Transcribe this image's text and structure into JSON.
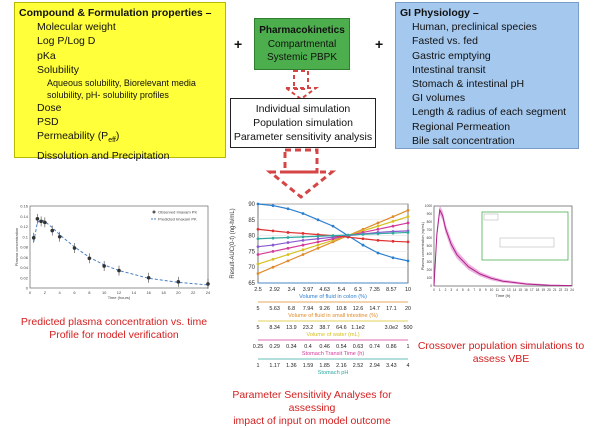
{
  "compound": {
    "title": "Compound & Formulation properties –",
    "items": [
      "Molecular weight",
      "Log P/Log D",
      "pKa",
      "Solubility"
    ],
    "sub_items": [
      "Aqueous solubility, Biorelevant media",
      "solubility, pH- solubility profiles"
    ],
    "items2": [
      "Dose",
      "PSD"
    ],
    "permeability": "Permeability (P",
    "permeability_sub": "eff",
    "permeability_end": ")",
    "last_item": "Dissolution and Precipitation"
  },
  "pk": {
    "title": "Pharmacokinetics",
    "line1": "Compartmental",
    "line2": "Systemic PBPK"
  },
  "gi": {
    "title": "GI Physiology –",
    "items": [
      "Human, preclinical species",
      "Fasted vs. fed",
      "Gastric emptying",
      "Intestinal transit",
      "Stomach & intestinal pH",
      "GI volumes",
      "Length & radius of each segment",
      "Regional Permeation",
      "Bile salt concentration"
    ]
  },
  "plus_sign": "+",
  "simulation": {
    "lines": [
      "Individual simulation",
      "Population simulation",
      "Parameter sensitivity analysis"
    ]
  },
  "captions": {
    "left": [
      "Predicted plasma concentration vs. time",
      "Profile for model verification"
    ],
    "middle": [
      "Parameter Sensitivity Analyses for assessing",
      "impact of input on model outcome"
    ],
    "right": [
      "Crossover population simulations to",
      "assess VBE"
    ]
  },
  "colors": {
    "compound_bg": "#ffff3a",
    "pk_bg": "#4cae4c",
    "gi_bg": "#a5c8ee",
    "caption_red": "#d42020",
    "arrow_red": "#d64545"
  },
  "chart_data": [
    {
      "type": "scatter",
      "title": "",
      "xlabel": "Time (hours)",
      "ylabel": "Plasma concentration",
      "xlim": [
        0,
        24
      ],
      "ylim": [
        0,
        0.16
      ],
      "legend": [
        "Observed Imaxam PK",
        "Predicted Imaxam PK"
      ],
      "legend_position": "top-right",
      "x": [
        0.5,
        1,
        1.5,
        2,
        3,
        4,
        6,
        8,
        10,
        12,
        16,
        20,
        24
      ],
      "observed": [
        0.098,
        0.135,
        0.13,
        0.128,
        0.112,
        0.1,
        0.078,
        0.058,
        0.043,
        0.034,
        0.02,
        0.012,
        0.008
      ],
      "predicted": [
        0.09,
        0.128,
        0.133,
        0.13,
        0.118,
        0.104,
        0.08,
        0.06,
        0.045,
        0.034,
        0.019,
        0.011,
        0.006
      ],
      "xticks": [
        "0",
        "2",
        "4",
        "6",
        "8",
        "10",
        "12",
        "14",
        "16",
        "18",
        "20",
        "22",
        "24"
      ],
      "yticks": [
        "0",
        "0.02",
        "0.04",
        "0.06",
        "0.08",
        "0.1",
        "0.12",
        "0.14",
        "0.16"
      ]
    },
    {
      "type": "line",
      "ylabel": "Result-AUC(0-t) (ng-h/mL)",
      "ylim": [
        65,
        90
      ],
      "yticks": [
        "65",
        "70",
        "75",
        "80",
        "85",
        "90"
      ],
      "series": [
        {
          "values": [
            90,
            89.5,
            88.5,
            87,
            85,
            83,
            80,
            77,
            74.5,
            73,
            72
          ],
          "color": "#2a7fd0"
        },
        {
          "values": [
            68,
            70,
            72,
            74,
            76,
            78,
            80,
            82,
            84,
            86,
            88
          ],
          "color": "#e08b2a"
        },
        {
          "values": [
            71,
            72.5,
            74,
            75.5,
            77,
            78.5,
            80,
            81.5,
            83,
            84.5,
            86
          ],
          "color": "#d8c020"
        },
        {
          "values": [
            74,
            75,
            76,
            77,
            78,
            79,
            80,
            81,
            82,
            83,
            84
          ],
          "color": "#d43b9a"
        },
        {
          "values": [
            76.5,
            77,
            77.8,
            78.5,
            79,
            79.5,
            80,
            80.5,
            81,
            81.3,
            81.5
          ],
          "color": "#8a5ad0"
        },
        {
          "values": [
            82,
            81.5,
            81,
            80.7,
            80.3,
            80,
            79.5,
            79,
            78.5,
            78.2,
            78
          ],
          "color": "#e03030"
        },
        {
          "values": [
            79,
            79.2,
            79.4,
            79.6,
            79.8,
            80,
            80.2,
            80.4,
            80.6,
            80.8,
            81
          ],
          "color": "#30a8a0"
        }
      ],
      "axes": [
        {
          "ticks": [
            "2.5",
            "2.92",
            "3.4",
            "3.97",
            "4.63",
            "5.4",
            "6.3",
            "7.35",
            "8.57",
            "10"
          ],
          "label": "Volume of fluid in colon (%)",
          "color": "#2a7fd0"
        },
        {
          "ticks": [
            "5",
            "5.63",
            "6.8",
            "7.94",
            "9.26",
            "10.8",
            "12.6",
            "14.7",
            "17.1",
            "20"
          ],
          "label": "Volume of fluid in small intestine (%)",
          "color": "#e08b2a"
        },
        {
          "ticks": [
            "5",
            "8.34",
            "13.9",
            "23.2",
            "38.7",
            "64.6",
            "1.1e2",
            "",
            "3.0e2",
            "500"
          ],
          "label": "Volume of water (mL)",
          "color": "#d8c020"
        },
        {
          "ticks": [
            "0.25",
            "0.29",
            "0.34",
            "0.4",
            "0.46",
            "0.54",
            "0.63",
            "0.74",
            "0.86",
            "1"
          ],
          "label": "Stomach Transit Time (h)",
          "color": "#d43b9a"
        },
        {
          "ticks": [
            "1",
            "1.17",
            "1.36",
            "1.59",
            "1.85",
            "2.16",
            "2.52",
            "2.94",
            "3.43",
            "4"
          ],
          "label": "Stomach pH",
          "color": "#30a8a0"
        }
      ]
    },
    {
      "type": "area",
      "xlabel": "Time (h)",
      "ylabel": "Plasma concentration (ng/mL)",
      "xlim": [
        0,
        24
      ],
      "ylim": [
        0,
        1000
      ],
      "x": [
        0,
        0.5,
        1,
        1.5,
        2,
        3,
        4,
        6,
        8,
        10,
        12,
        16,
        20,
        24
      ],
      "values": [
        0,
        650,
        950,
        880,
        720,
        520,
        390,
        240,
        150,
        95,
        60,
        25,
        10,
        4
      ],
      "band_upper": [
        0,
        720,
        1010,
        940,
        780,
        580,
        440,
        280,
        180,
        120,
        80,
        40,
        20,
        10
      ],
      "band_lower": [
        0,
        580,
        890,
        820,
        660,
        460,
        340,
        200,
        120,
        70,
        40,
        12,
        4,
        0
      ],
      "xticks": [
        "0",
        "1",
        "2",
        "3",
        "4",
        "5",
        "6",
        "7",
        "8",
        "9",
        "10",
        "11",
        "12",
        "13",
        "14",
        "15",
        "16",
        "17",
        "18",
        "19",
        "20",
        "21",
        "22",
        "23",
        "24"
      ],
      "yticks": [
        "0",
        "100",
        "200",
        "300",
        "400",
        "500",
        "600",
        "700",
        "800",
        "900",
        "1000"
      ]
    }
  ]
}
